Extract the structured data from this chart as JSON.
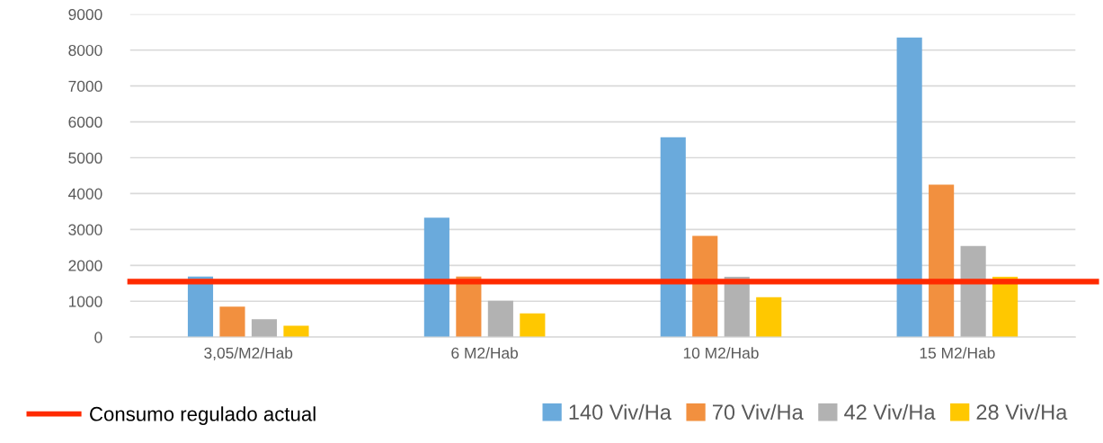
{
  "chart_data": {
    "type": "bar",
    "categories": [
      "3,05/M2/Hab",
      "6 M2/Hab",
      "10 M2/Hab",
      "15 M2/Hab"
    ],
    "series": [
      {
        "name": "140 Viv/Ha",
        "color": "#6aaadc",
        "values": [
          1690,
          3330,
          5570,
          8350
        ]
      },
      {
        "name": "70 Viv/Ha",
        "color": "#f2903f",
        "values": [
          850,
          1690,
          2820,
          4250
        ]
      },
      {
        "name": "42 Viv/Ha",
        "color": "#b2b2b2",
        "values": [
          500,
          1010,
          1680,
          2540
        ]
      },
      {
        "name": "28 Viv/Ha",
        "color": "#ffc800",
        "values": [
          320,
          660,
          1110,
          1680
        ]
      }
    ],
    "ylim": [
      0,
      9000
    ],
    "yticks": [
      0,
      1000,
      2000,
      3000,
      4000,
      5000,
      6000,
      7000,
      8000,
      9000
    ],
    "grid": "y",
    "legend": "bottom",
    "ref_lines": [
      {
        "axis": "y",
        "value": 1550,
        "label": "Consumo regulado actual",
        "color": "#ff2a00"
      }
    ]
  }
}
